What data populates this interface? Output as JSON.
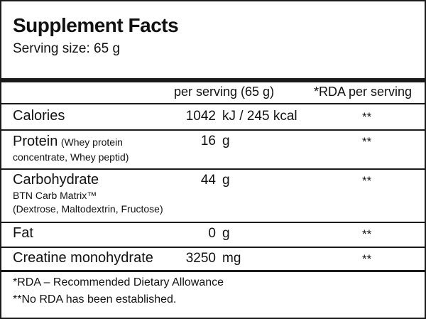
{
  "header": {
    "title": "Supplement Facts",
    "serving": "Serving size: 65 g"
  },
  "table": {
    "columns": [
      "per serving (65 g)",
      "*RDA per serving"
    ],
    "rows": [
      {
        "name": "Calories",
        "amount": 1042,
        "unit": "kJ / 245 kcal",
        "rda": "**"
      },
      {
        "name": "Protein",
        "note": "(Whey protein concentrate, Whey peptid)",
        "amount": 16,
        "unit": "g",
        "rda": "**"
      },
      {
        "name": "Carbohydrate",
        "note_lines": [
          "BTN Carb Matrix™",
          "(Dextrose, Maltodextrin, Fructose)"
        ],
        "amount": 44,
        "unit": "g",
        "rda": "**"
      },
      {
        "name": "Fat",
        "amount": 0,
        "unit": "g",
        "rda": "**"
      },
      {
        "name": "Creatine monohydrate",
        "amount": 3250,
        "unit": "mg",
        "rda": "**"
      }
    ]
  },
  "footer": [
    "*RDA – Recommended Dietary Allowance",
    "**No RDA has been established."
  ]
}
